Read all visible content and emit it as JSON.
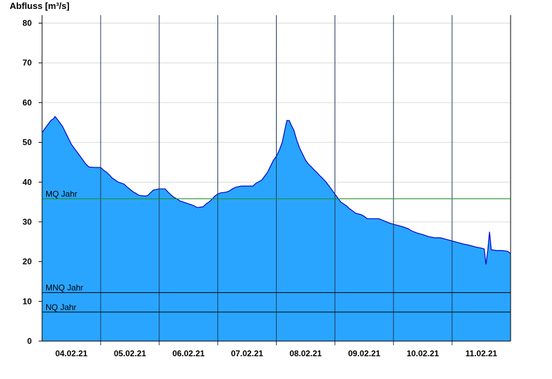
{
  "chart_data": {
    "type": "area",
    "ylabel": "Abfluss [m³/s]",
    "ylim": [
      0,
      82
    ],
    "yticks": [
      0,
      10,
      20,
      30,
      40,
      50,
      60,
      70,
      80
    ],
    "xlim": [
      0,
      8
    ],
    "x_unit": "days",
    "grid": "horizontal",
    "day_ticks": [
      "04.02.21",
      "05.02.21",
      "06.02.21",
      "07.02.21",
      "08.02.21",
      "09.02.21",
      "10.02.21",
      "11.02.21"
    ],
    "colors": {
      "fill": "#2aa5ff",
      "line": "#0000cc",
      "mq": "#228b22",
      "ref": "#000000",
      "grid": "#d9d9d9"
    },
    "reference_lines": [
      {
        "label": "MQ Jahr",
        "value": 35.8,
        "color": "#228b22"
      },
      {
        "label": "MNQ Jahr",
        "value": 12.2,
        "color": "#000000"
      },
      {
        "label": "NQ Jahr",
        "value": 7.3,
        "color": "#000000"
      }
    ],
    "series": [
      {
        "values": [
          [
            0.0,
            52.5
          ],
          [
            0.05,
            53.5
          ],
          [
            0.1,
            54.5
          ],
          [
            0.15,
            55.5
          ],
          [
            0.2,
            56.0
          ],
          [
            0.22,
            56.5
          ],
          [
            0.25,
            56.0
          ],
          [
            0.3,
            55.0
          ],
          [
            0.35,
            54.0
          ],
          [
            0.4,
            52.5
          ],
          [
            0.45,
            51.0
          ],
          [
            0.5,
            49.5
          ],
          [
            0.55,
            48.5
          ],
          [
            0.6,
            47.5
          ],
          [
            0.65,
            46.5
          ],
          [
            0.7,
            45.5
          ],
          [
            0.75,
            44.5
          ],
          [
            0.8,
            43.8
          ],
          [
            0.9,
            43.7
          ],
          [
            1.0,
            43.7
          ],
          [
            1.05,
            43.0
          ],
          [
            1.1,
            42.5
          ],
          [
            1.15,
            41.8
          ],
          [
            1.2,
            41.0
          ],
          [
            1.25,
            40.5
          ],
          [
            1.3,
            40.0
          ],
          [
            1.4,
            39.5
          ],
          [
            1.45,
            38.8
          ],
          [
            1.5,
            38.2
          ],
          [
            1.55,
            37.6
          ],
          [
            1.6,
            37.2
          ],
          [
            1.65,
            36.7
          ],
          [
            1.75,
            36.5
          ],
          [
            1.8,
            36.6
          ],
          [
            1.85,
            37.3
          ],
          [
            1.9,
            38.0
          ],
          [
            2.0,
            38.3
          ],
          [
            2.1,
            38.3
          ],
          [
            2.15,
            37.5
          ],
          [
            2.2,
            36.8
          ],
          [
            2.25,
            36.2
          ],
          [
            2.3,
            35.8
          ],
          [
            2.35,
            35.3
          ],
          [
            2.45,
            34.8
          ],
          [
            2.55,
            34.3
          ],
          [
            2.6,
            34.0
          ],
          [
            2.65,
            33.6
          ],
          [
            2.75,
            33.8
          ],
          [
            2.8,
            34.5
          ],
          [
            2.85,
            35.0
          ],
          [
            2.9,
            35.7
          ],
          [
            2.95,
            36.5
          ],
          [
            3.0,
            37.0
          ],
          [
            3.05,
            37.3
          ],
          [
            3.15,
            37.5
          ],
          [
            3.2,
            37.8
          ],
          [
            3.25,
            38.3
          ],
          [
            3.3,
            38.7
          ],
          [
            3.4,
            39.0
          ],
          [
            3.5,
            39.0
          ],
          [
            3.6,
            39.0
          ],
          [
            3.65,
            39.7
          ],
          [
            3.75,
            40.5
          ],
          [
            3.8,
            41.5
          ],
          [
            3.85,
            42.5
          ],
          [
            3.9,
            44.0
          ],
          [
            3.95,
            45.5
          ],
          [
            4.0,
            46.5
          ],
          [
            4.05,
            48.0
          ],
          [
            4.1,
            50.0
          ],
          [
            4.15,
            53.5
          ],
          [
            4.18,
            55.5
          ],
          [
            4.22,
            55.5
          ],
          [
            4.25,
            54.5
          ],
          [
            4.3,
            53.0
          ],
          [
            4.35,
            50.5
          ],
          [
            4.4,
            48.5
          ],
          [
            4.45,
            47.0
          ],
          [
            4.5,
            45.5
          ],
          [
            4.55,
            44.5
          ],
          [
            4.6,
            43.8
          ],
          [
            4.65,
            43.0
          ],
          [
            4.7,
            42.3
          ],
          [
            4.75,
            41.5
          ],
          [
            4.8,
            40.8
          ],
          [
            4.85,
            40.0
          ],
          [
            4.9,
            39.0
          ],
          [
            4.95,
            38.0
          ],
          [
            5.0,
            37.0
          ],
          [
            5.05,
            36.0
          ],
          [
            5.1,
            35.0
          ],
          [
            5.15,
            34.5
          ],
          [
            5.2,
            34.0
          ],
          [
            5.25,
            33.3
          ],
          [
            5.3,
            32.8
          ],
          [
            5.35,
            32.2
          ],
          [
            5.45,
            31.8
          ],
          [
            5.5,
            31.4
          ],
          [
            5.55,
            30.8
          ],
          [
            5.65,
            30.8
          ],
          [
            5.75,
            30.8
          ],
          [
            5.85,
            30.2
          ],
          [
            5.95,
            29.6
          ],
          [
            6.05,
            29.2
          ],
          [
            6.15,
            28.8
          ],
          [
            6.25,
            28.3
          ],
          [
            6.3,
            27.8
          ],
          [
            6.4,
            27.2
          ],
          [
            6.5,
            26.8
          ],
          [
            6.6,
            26.3
          ],
          [
            6.7,
            26.0
          ],
          [
            6.8,
            26.0
          ],
          [
            6.9,
            25.6
          ],
          [
            7.0,
            25.2
          ],
          [
            7.1,
            24.8
          ],
          [
            7.2,
            24.4
          ],
          [
            7.3,
            24.1
          ],
          [
            7.4,
            23.7
          ],
          [
            7.5,
            23.4
          ],
          [
            7.55,
            23.2
          ],
          [
            7.58,
            19.3
          ],
          [
            7.61,
            22.8
          ],
          [
            7.64,
            27.5
          ],
          [
            7.67,
            23.0
          ],
          [
            7.75,
            22.8
          ],
          [
            7.85,
            22.8
          ],
          [
            7.95,
            22.6
          ],
          [
            8.0,
            22.0
          ]
        ]
      }
    ]
  }
}
